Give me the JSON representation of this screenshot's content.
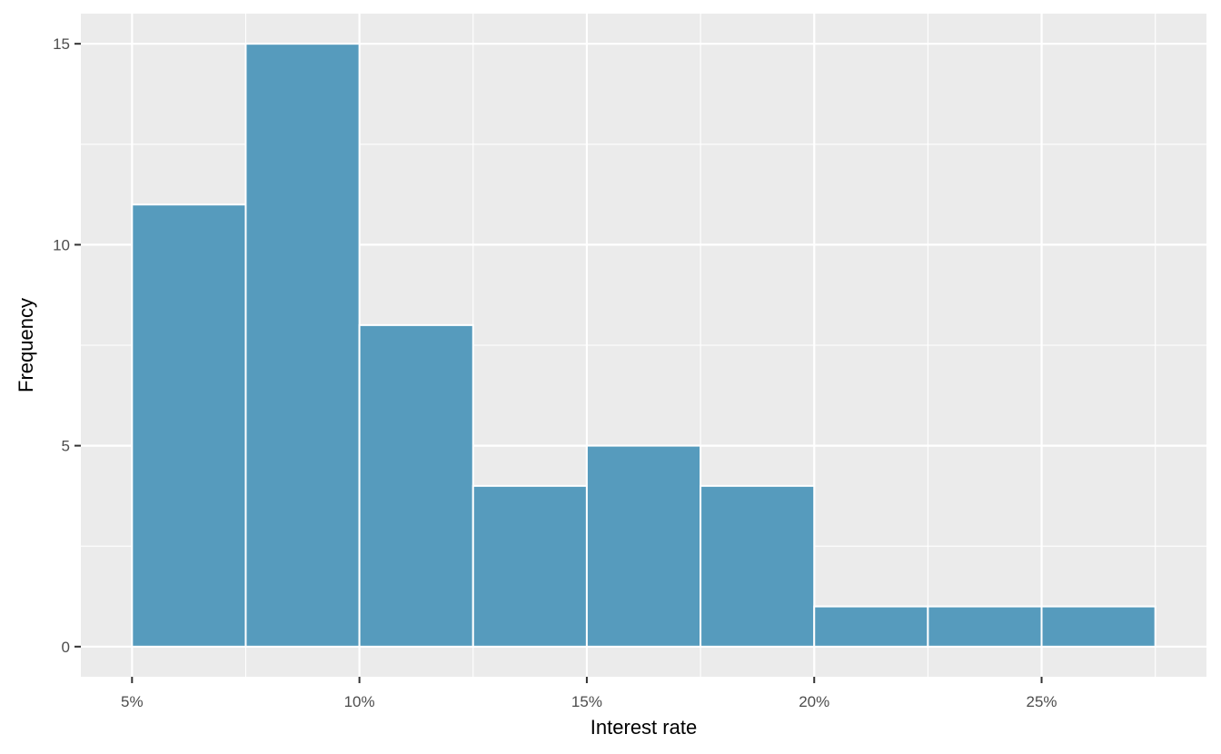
{
  "chart_data": {
    "type": "bar",
    "subtype": "histogram",
    "bins": [
      {
        "x_start": 5,
        "x_end": 7.5,
        "count": 11
      },
      {
        "x_start": 7.5,
        "x_end": 10,
        "count": 15
      },
      {
        "x_start": 10,
        "x_end": 12.5,
        "count": 8
      },
      {
        "x_start": 12.5,
        "x_end": 15,
        "count": 4
      },
      {
        "x_start": 15,
        "x_end": 17.5,
        "count": 5
      },
      {
        "x_start": 17.5,
        "x_end": 20,
        "count": 4
      },
      {
        "x_start": 20,
        "x_end": 22.5,
        "count": 1
      },
      {
        "x_start": 22.5,
        "x_end": 25,
        "count": 1
      },
      {
        "x_start": 25,
        "x_end": 27.5,
        "count": 1
      }
    ],
    "xlabel": "Interest rate",
    "ylabel": "Frequency",
    "xlim": [
      3.875,
      28.625
    ],
    "ylim": [
      -0.75,
      15.75
    ],
    "x_ticks": [
      5,
      10,
      15,
      20,
      25
    ],
    "x_tick_labels": [
      "5%",
      "10%",
      "15%",
      "20%",
      "25%"
    ],
    "y_ticks": [
      0,
      5,
      10,
      15
    ],
    "y_tick_labels": [
      "0",
      "5",
      "10",
      "15"
    ],
    "grid": true,
    "colors": {
      "bar_fill": "#569bbd",
      "bar_stroke": "#ffffff",
      "panel_background": "#ebebeb",
      "grid": "#ffffff"
    }
  }
}
